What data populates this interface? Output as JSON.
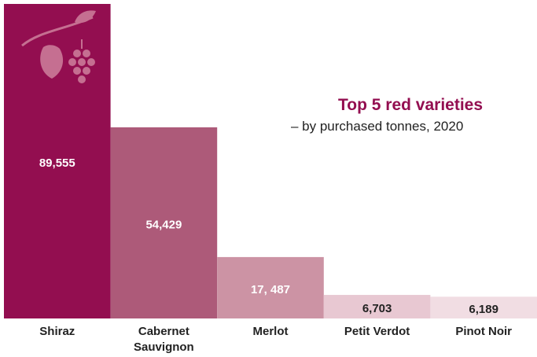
{
  "chart_data": {
    "type": "bar",
    "title": "Top 5 red varieties",
    "subtitle": "– by purchased tonnes, 2020",
    "categories": [
      "Shiraz",
      "Cabernet Sauvignon",
      "Merlot",
      "Petit Verdot",
      "Pinot Noir"
    ],
    "values": [
      89555,
      54429,
      17487,
      6703,
      6189
    ],
    "value_labels": [
      "89,555",
      "54,429",
      "17, 487",
      "6,703",
      "6,189"
    ],
    "colors": [
      "#930e50",
      "#ad5a79",
      "#cc93a4",
      "#e8c8d2",
      "#f1dde3"
    ],
    "label_colors": [
      "#ffffff",
      "#ffffff",
      "#ffffff",
      "#222222",
      "#222222"
    ]
  }
}
